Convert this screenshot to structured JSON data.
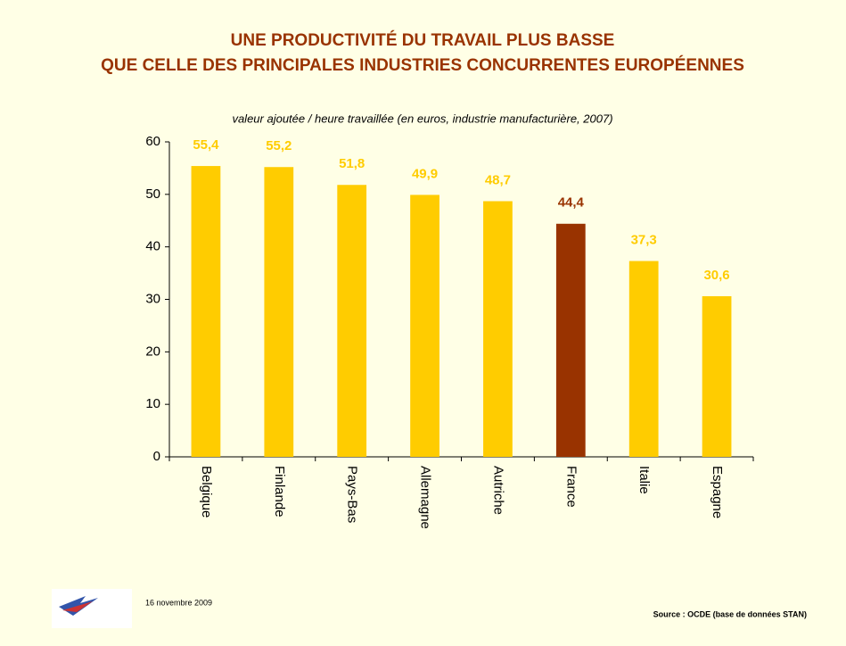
{
  "chart_data": {
    "type": "bar",
    "title": [
      "UNE PRODUCTIVITÉ DU TRAVAIL PLUS BASSE",
      "QUE CELLE  DES PRINCIPALES INDUSTRIES CONCURRENTES EUROPÉENNES"
    ],
    "subtitle": "valeur ajoutée / heure travaillée (en euros, industrie manufacturière, 2007)",
    "categories": [
      "Belgique",
      "Finlande",
      "Pays-Bas",
      "Allemagne",
      "Autriche",
      "France",
      "Italie",
      "Espagne"
    ],
    "values": [
      55.4,
      55.2,
      51.8,
      49.9,
      48.7,
      44.4,
      37.3,
      30.6
    ],
    "value_labels": [
      "55,4",
      "55,2",
      "51,8",
      "49,9",
      "48,7",
      "44,4",
      "37,3",
      "30,6"
    ],
    "colors": [
      "#ffcc00",
      "#ffcc00",
      "#ffcc00",
      "#ffcc00",
      "#ffcc00",
      "#993300",
      "#ffcc00",
      "#ffcc00"
    ],
    "ylim": [
      0,
      60
    ],
    "yticks": [
      0,
      10,
      20,
      30,
      40,
      50,
      60
    ],
    "grid": false
  },
  "footer": {
    "date": "16 novembre 2009",
    "source": "Source : OCDE (base de données STAN)"
  }
}
